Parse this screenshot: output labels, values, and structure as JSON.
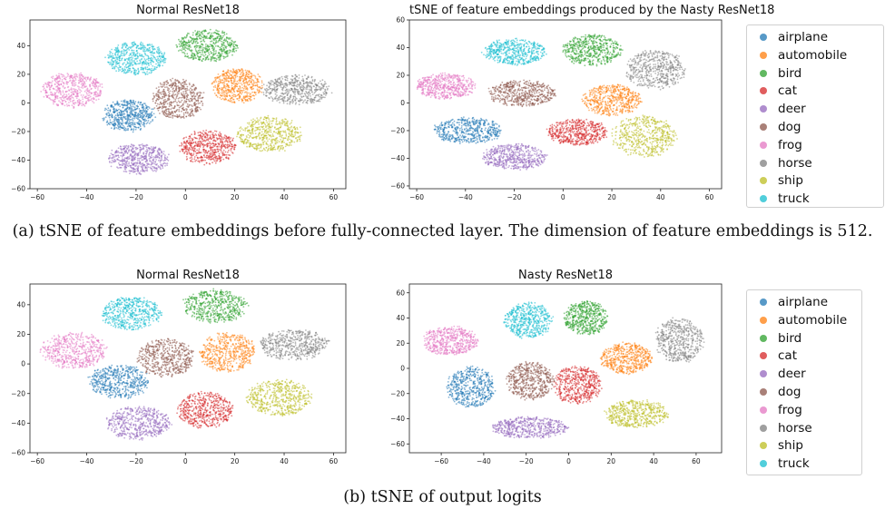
{
  "colors": {
    "airplane": "#1f77b4",
    "automobile": "#ff7f0e",
    "bird": "#2ca02c",
    "cat": "#d62728",
    "deer": "#9467bd",
    "dog": "#8c564b",
    "frog": "#e377c2",
    "horse": "#7f7f7f",
    "ship": "#bcbd22",
    "truck": "#17becf"
  },
  "legend": {
    "entries": [
      "airplane",
      "automobile",
      "bird",
      "cat",
      "deer",
      "dog",
      "frog",
      "horse",
      "ship",
      "truck"
    ]
  },
  "captions": {
    "a": "(a)  tSNE of feature embeddings before fully-connected layer.  The dimension of feature embeddings is 512.",
    "b": "(b)  tSNE of output logits"
  },
  "chart_data": [
    {
      "type": "scatter",
      "title": "Normal ResNet18",
      "xlabel": "",
      "ylabel": "",
      "xlim": [
        -63,
        65
      ],
      "ylim": [
        -60,
        58
      ],
      "xticks": [
        -60,
        -40,
        -20,
        0,
        20,
        40,
        60
      ],
      "yticks": [
        -60,
        -40,
        -20,
        0,
        20,
        40
      ],
      "grid": false,
      "clusters": [
        {
          "name": "airplane",
          "cx": -23,
          "cy": -9,
          "rx": 11,
          "ry": 12
        },
        {
          "name": "automobile",
          "cx": 21,
          "cy": 12,
          "rx": 11,
          "ry": 13
        },
        {
          "name": "bird",
          "cx": 9,
          "cy": 40,
          "rx": 13,
          "ry": 12
        },
        {
          "name": "cat",
          "cx": 9,
          "cy": -31,
          "rx": 12,
          "ry": 13
        },
        {
          "name": "deer",
          "cx": -19,
          "cy": -39,
          "rx": 13,
          "ry": 11
        },
        {
          "name": "dog",
          "cx": -3,
          "cy": 3,
          "rx": 11,
          "ry": 15
        },
        {
          "name": "frog",
          "cx": -46,
          "cy": 9,
          "rx": 13,
          "ry": 13
        },
        {
          "name": "horse",
          "cx": 45,
          "cy": 9,
          "rx": 15,
          "ry": 11
        },
        {
          "name": "ship",
          "cx": 34,
          "cy": -22,
          "rx": 14,
          "ry": 13
        },
        {
          "name": "truck",
          "cx": -20,
          "cy": 31,
          "rx": 13,
          "ry": 12
        }
      ]
    },
    {
      "type": "scatter",
      "title": "tSNE of feature embeddings produced by the Nasty ResNet18",
      "xlabel": "",
      "ylabel": "",
      "xlim": [
        -63,
        65
      ],
      "ylim": [
        -62,
        60
      ],
      "xticks": [
        -60,
        -40,
        -20,
        0,
        20,
        40,
        60
      ],
      "yticks": [
        -60,
        -40,
        -20,
        0,
        20,
        40,
        60
      ],
      "grid": false,
      "clusters": [
        {
          "name": "airplane",
          "cx": -39,
          "cy": -20,
          "rx": 15,
          "ry": 10
        },
        {
          "name": "automobile",
          "cx": 20,
          "cy": 2,
          "rx": 13,
          "ry": 12
        },
        {
          "name": "bird",
          "cx": 12,
          "cy": 38,
          "rx": 13,
          "ry": 12
        },
        {
          "name": "cat",
          "cx": 6,
          "cy": -21,
          "rx": 13,
          "ry": 10
        },
        {
          "name": "deer",
          "cx": -20,
          "cy": -39,
          "rx": 14,
          "ry": 10
        },
        {
          "name": "dog",
          "cx": -17,
          "cy": 7,
          "rx": 15,
          "ry": 10
        },
        {
          "name": "frog",
          "cx": -48,
          "cy": 12,
          "rx": 13,
          "ry": 10
        },
        {
          "name": "horse",
          "cx": 38,
          "cy": 24,
          "rx": 13,
          "ry": 15
        },
        {
          "name": "ship",
          "cx": 33,
          "cy": -24,
          "rx": 14,
          "ry": 16
        },
        {
          "name": "truck",
          "cx": -20,
          "cy": 37,
          "rx": 14,
          "ry": 10
        }
      ]
    },
    {
      "type": "scatter",
      "title": "Normal ResNet18",
      "xlabel": "",
      "ylabel": "",
      "xlim": [
        -63,
        65
      ],
      "ylim": [
        -60,
        54
      ],
      "xticks": [
        -60,
        -40,
        -20,
        0,
        20,
        40,
        60
      ],
      "yticks": [
        -60,
        -40,
        -20,
        0,
        20,
        40
      ],
      "grid": false,
      "clusters": [
        {
          "name": "airplane",
          "cx": -27,
          "cy": -12,
          "rx": 13,
          "ry": 12
        },
        {
          "name": "automobile",
          "cx": 17,
          "cy": 8,
          "rx": 12,
          "ry": 14
        },
        {
          "name": "bird",
          "cx": 12,
          "cy": 39,
          "rx": 14,
          "ry": 12
        },
        {
          "name": "cat",
          "cx": 8,
          "cy": -31,
          "rx": 12,
          "ry": 13
        },
        {
          "name": "deer",
          "cx": -19,
          "cy": -40,
          "rx": 14,
          "ry": 12
        },
        {
          "name": "dog",
          "cx": -8,
          "cy": 4,
          "rx": 12,
          "ry": 14
        },
        {
          "name": "frog",
          "cx": -45,
          "cy": 9,
          "rx": 14,
          "ry": 13
        },
        {
          "name": "horse",
          "cx": 44,
          "cy": 13,
          "rx": 15,
          "ry": 11
        },
        {
          "name": "ship",
          "cx": 38,
          "cy": -23,
          "rx": 14,
          "ry": 13
        },
        {
          "name": "truck",
          "cx": -22,
          "cy": 34,
          "rx": 13,
          "ry": 12
        }
      ]
    },
    {
      "type": "scatter",
      "title": "Nasty ResNet18",
      "xlabel": "",
      "ylabel": "",
      "xlim": [
        -75,
        72
      ],
      "ylim": [
        -67,
        67
      ],
      "xticks": [
        -60,
        -40,
        -20,
        0,
        20,
        40,
        60
      ],
      "yticks": [
        -60,
        -40,
        -20,
        0,
        20,
        40,
        60
      ],
      "grid": false,
      "clusters": [
        {
          "name": "airplane",
          "cx": -46,
          "cy": -15,
          "rx": 12,
          "ry": 17
        },
        {
          "name": "automobile",
          "cx": 27,
          "cy": 8,
          "rx": 13,
          "ry": 13
        },
        {
          "name": "bird",
          "cx": 8,
          "cy": 40,
          "rx": 11,
          "ry": 14
        },
        {
          "name": "cat",
          "cx": 4,
          "cy": -13,
          "rx": 12,
          "ry": 16
        },
        {
          "name": "deer",
          "cx": -18,
          "cy": -47,
          "rx": 19,
          "ry": 9
        },
        {
          "name": "dog",
          "cx": -18,
          "cy": -10,
          "rx": 12,
          "ry": 16
        },
        {
          "name": "frog",
          "cx": -56,
          "cy": 22,
          "rx": 14,
          "ry": 12
        },
        {
          "name": "horse",
          "cx": 52,
          "cy": 22,
          "rx": 12,
          "ry": 19
        },
        {
          "name": "ship",
          "cx": 32,
          "cy": -36,
          "rx": 16,
          "ry": 12
        },
        {
          "name": "truck",
          "cx": -19,
          "cy": 38,
          "rx": 12,
          "ry": 15
        }
      ]
    }
  ]
}
